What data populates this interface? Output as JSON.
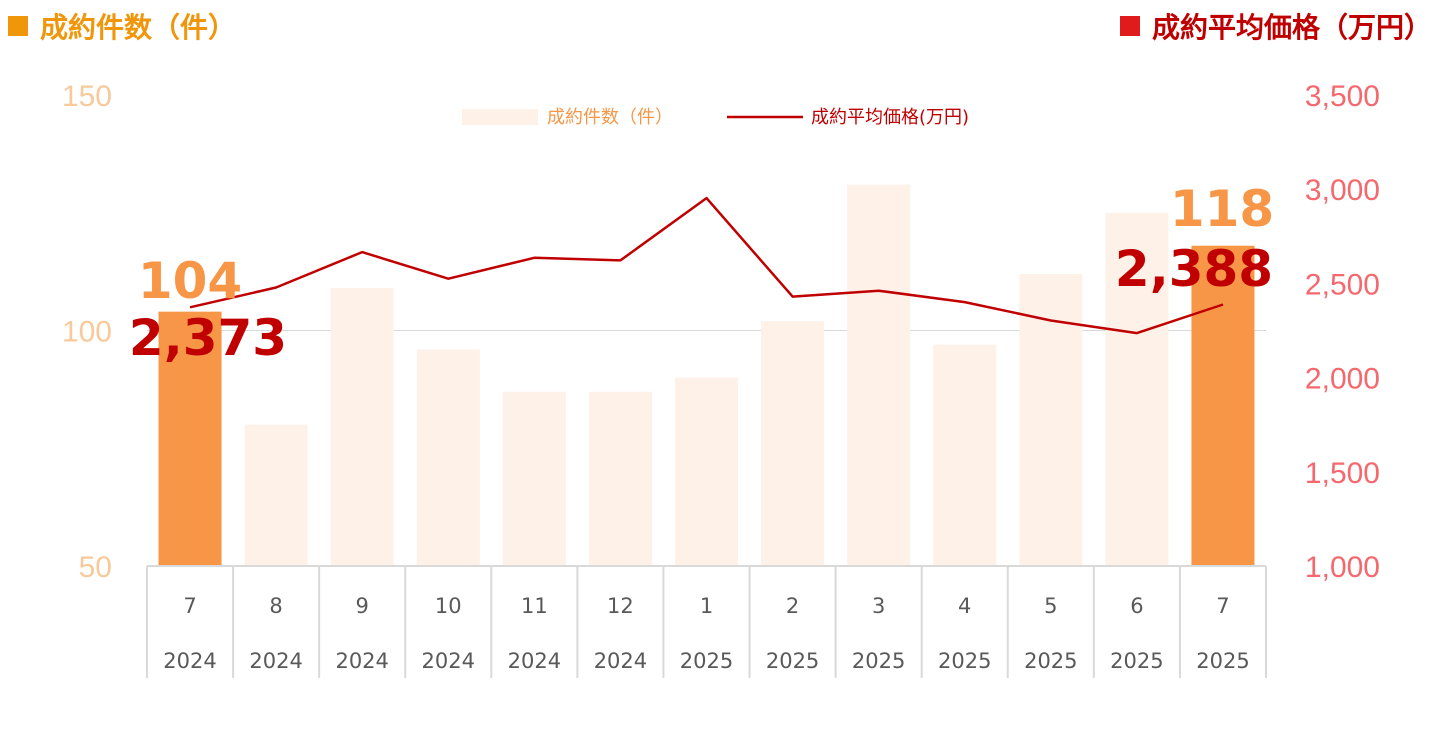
{
  "header": {
    "left_title": "成約件数（件）",
    "right_title": "成約平均価格（万円）",
    "left_color": "#F0960A",
    "right_color": "#C00000"
  },
  "chart_data": {
    "type": "bar+line",
    "categories": [
      {
        "month": "7",
        "year": "2024"
      },
      {
        "month": "8",
        "year": "2024"
      },
      {
        "month": "9",
        "year": "2024"
      },
      {
        "month": "10",
        "year": "2024"
      },
      {
        "month": "11",
        "year": "2024"
      },
      {
        "month": "12",
        "year": "2024"
      },
      {
        "month": "1",
        "year": "2025"
      },
      {
        "month": "2",
        "year": "2025"
      },
      {
        "month": "3",
        "year": "2025"
      },
      {
        "month": "4",
        "year": "2025"
      },
      {
        "month": "5",
        "year": "2025"
      },
      {
        "month": "6",
        "year": "2025"
      },
      {
        "month": "7",
        "year": "2025"
      }
    ],
    "series": [
      {
        "name": "成約件数（件）",
        "type": "bar",
        "axis": "left",
        "values": [
          104,
          80,
          109,
          96,
          87,
          87,
          90,
          102,
          131,
          97,
          112,
          125,
          118
        ],
        "color": "#FDF1E8",
        "highlight_color": "#F79646",
        "highlight_indices": [
          0,
          12
        ]
      },
      {
        "name": "成約平均価格(万円)",
        "type": "line",
        "axis": "right",
        "values": [
          2373,
          2478,
          2666,
          2525,
          2636,
          2622,
          2953,
          2430,
          2461,
          2401,
          2303,
          2236,
          2388
        ],
        "color": "#C00000"
      }
    ],
    "left_axis": {
      "min": 50,
      "max": 150,
      "ticks": [
        "50",
        "100",
        "150"
      ],
      "color": "#F8C99A"
    },
    "right_axis": {
      "min": 1000,
      "max": 3500,
      "ticks": [
        "1,000",
        "1,500",
        "2,000",
        "2,500",
        "3,000",
        "3,500"
      ],
      "color": "#F4686E"
    },
    "annotations": [
      {
        "text": "104",
        "color": "#F79646"
      },
      {
        "text": "2,373",
        "color": "#C00000"
      },
      {
        "text": "118",
        "color": "#F79646"
      },
      {
        "text": "2,388",
        "color": "#C00000"
      }
    ],
    "gridline_at": 100,
    "legend_position": "top-center"
  }
}
